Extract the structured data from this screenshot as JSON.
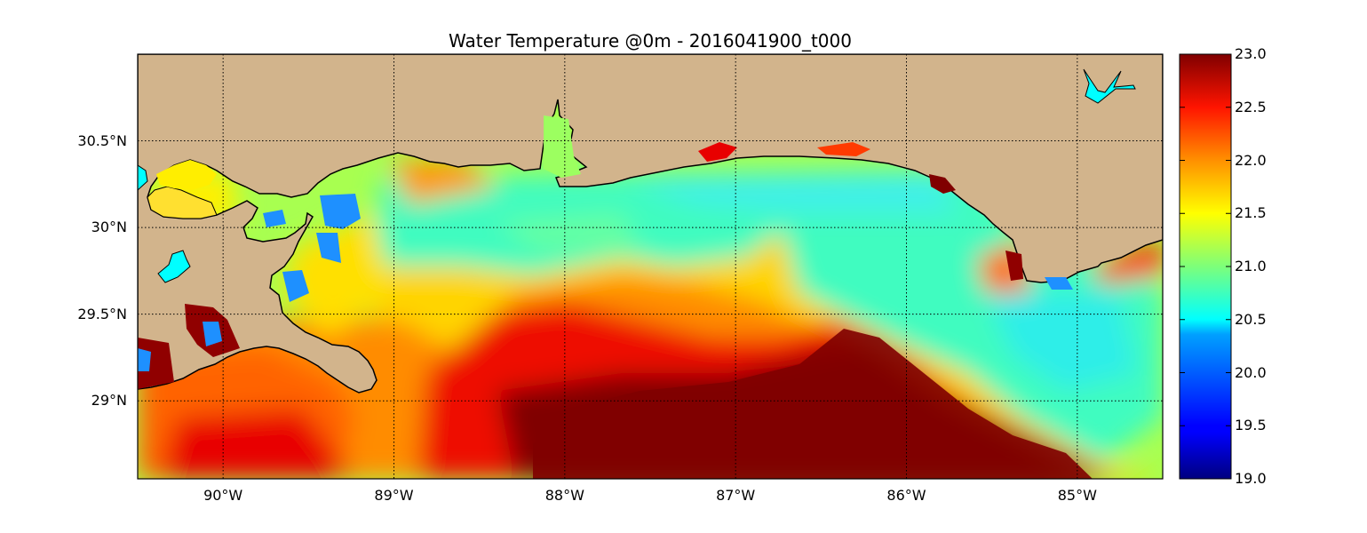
{
  "title": "Water Temperature @0m - 2016041900_t000",
  "map": {
    "extent": {
      "lon": [
        -90.5,
        -84.5
      ],
      "lat": [
        28.55,
        31.0
      ]
    },
    "land_color": "#d2b48c",
    "lake_color": "#00ffff",
    "gridlines": "dotted",
    "x_ticks": [
      {
        "lon": -90,
        "label": "90°W"
      },
      {
        "lon": -89,
        "label": "89°W"
      },
      {
        "lon": -88,
        "label": "88°W"
      },
      {
        "lon": -87,
        "label": "87°W"
      },
      {
        "lon": -86,
        "label": "86°W"
      },
      {
        "lon": -85,
        "label": "85°W"
      }
    ],
    "y_ticks": [
      {
        "lat": 30.5,
        "label": "30.5°N"
      },
      {
        "lat": 30.0,
        "label": "30°N"
      },
      {
        "lat": 29.5,
        "label": "29.5°N"
      },
      {
        "lat": 29.0,
        "label": "29°N"
      }
    ]
  },
  "colorbar": {
    "colormap": "jet",
    "min": 19.0,
    "max": 23.0,
    "ticks": [
      "23.0",
      "22.5",
      "22.0",
      "21.5",
      "21.0",
      "20.5",
      "20.0",
      "19.5",
      "19.0"
    ]
  }
}
